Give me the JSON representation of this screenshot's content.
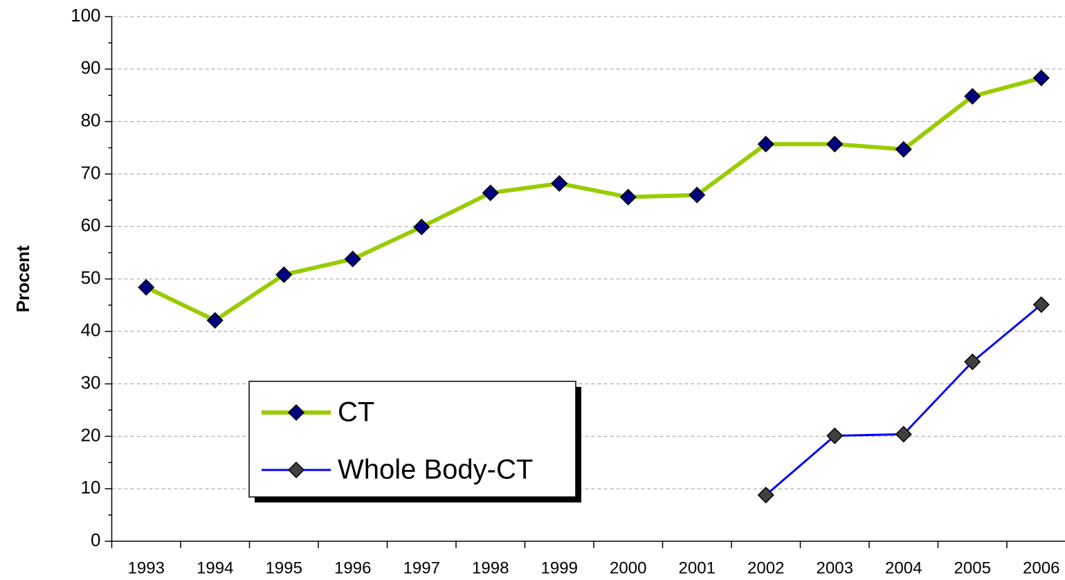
{
  "chart_data": {
    "type": "line",
    "y_label": "Procent",
    "categories": [
      "1993",
      "1994",
      "1995",
      "1996",
      "1997",
      "1998",
      "1999",
      "2000",
      "2001",
      "2002",
      "2003",
      "2004",
      "2005",
      "2006"
    ],
    "series": [
      {
        "name": "CT",
        "color": "#99cc00",
        "marker_color": "#000080",
        "values": [
          48.4,
          42.1,
          50.8,
          53.8,
          59.9,
          66.4,
          68.2,
          65.6,
          66.0,
          75.7,
          75.7,
          74.7,
          84.8,
          88.3
        ]
      },
      {
        "name": "Whole Body-CT",
        "color": "#0000ff",
        "marker_color": "#404040",
        "values": [
          null,
          null,
          null,
          null,
          null,
          null,
          null,
          null,
          null,
          8.8,
          20.1,
          20.4,
          34.2,
          45.1
        ]
      }
    ],
    "ylim": [
      0,
      100
    ],
    "yticks": [
      0,
      10,
      20,
      30,
      40,
      50,
      60,
      70,
      80,
      90,
      100
    ],
    "yminorticks": [
      5,
      15,
      25,
      35,
      45,
      55,
      65,
      75,
      85,
      95
    ],
    "grid": true
  }
}
